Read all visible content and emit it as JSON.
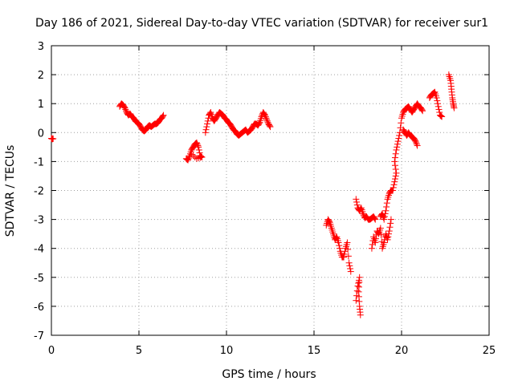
{
  "chart_data": {
    "type": "scatter",
    "title": "Day 186 of 2021, Sidereal Day-to-day VTEC variation (SDTVAR) for receiver sur1",
    "xlabel": "GPS time / hours",
    "ylabel": "SDTVAR / TECUs",
    "xlim": [
      0,
      25
    ],
    "ylim": [
      -7,
      3
    ],
    "xticks": [
      0,
      5,
      10,
      15,
      20,
      25
    ],
    "yticks": [
      -7,
      -6,
      -5,
      -4,
      -3,
      -2,
      -1,
      0,
      1,
      2,
      3
    ],
    "grid": true,
    "marker": "+",
    "color": "#ff0000",
    "series": [
      {
        "name": "sur1",
        "segments": [
          [
            [
              0.0,
              -0.2
            ],
            [
              0.05,
              -0.22
            ],
            [
              0.1,
              -0.21
            ]
          ],
          [
            [
              3.9,
              0.9
            ],
            [
              4.0,
              1.0
            ],
            [
              4.1,
              0.95
            ],
            [
              4.2,
              0.85
            ],
            [
              4.3,
              0.7
            ],
            [
              4.4,
              0.6
            ],
            [
              4.5,
              0.65
            ],
            [
              4.6,
              0.55
            ],
            [
              4.7,
              0.5
            ],
            [
              4.8,
              0.4
            ],
            [
              4.9,
              0.35
            ],
            [
              5.0,
              0.3
            ],
            [
              5.1,
              0.2
            ],
            [
              5.2,
              0.1
            ],
            [
              5.3,
              0.05
            ],
            [
              5.4,
              0.1
            ],
            [
              5.5,
              0.2
            ],
            [
              5.6,
              0.25
            ],
            [
              5.7,
              0.2
            ],
            [
              5.8,
              0.25
            ],
            [
              5.9,
              0.3
            ],
            [
              6.0,
              0.3
            ],
            [
              6.1,
              0.35
            ],
            [
              6.2,
              0.45
            ],
            [
              6.3,
              0.5
            ],
            [
              6.4,
              0.6
            ]
          ],
          [
            [
              7.7,
              -0.9
            ],
            [
              7.8,
              -0.95
            ],
            [
              7.9,
              -0.8
            ],
            [
              8.0,
              -0.6
            ],
            [
              8.1,
              -0.5
            ],
            [
              8.2,
              -0.4
            ],
            [
              8.3,
              -0.35
            ],
            [
              8.4,
              -0.5
            ],
            [
              8.5,
              -0.8
            ],
            [
              8.6,
              -0.85
            ],
            [
              8.3,
              -0.9
            ],
            [
              8.0,
              -0.75
            ]
          ],
          [
            [
              8.8,
              0.0
            ],
            [
              8.9,
              0.3
            ],
            [
              9.0,
              0.6
            ],
            [
              9.1,
              0.7
            ],
            [
              9.2,
              0.5
            ],
            [
              9.3,
              0.4
            ],
            [
              9.4,
              0.5
            ],
            [
              9.5,
              0.6
            ],
            [
              9.6,
              0.7
            ],
            [
              9.7,
              0.65
            ],
            [
              9.8,
              0.6
            ],
            [
              9.9,
              0.5
            ],
            [
              10.0,
              0.45
            ],
            [
              10.1,
              0.35
            ],
            [
              10.2,
              0.3
            ],
            [
              10.3,
              0.2
            ],
            [
              10.4,
              0.1
            ],
            [
              10.5,
              0.05
            ],
            [
              10.6,
              -0.05
            ],
            [
              10.7,
              -0.1
            ],
            [
              10.8,
              -0.05
            ],
            [
              10.9,
              0.0
            ],
            [
              11.0,
              0.05
            ],
            [
              11.1,
              0.1
            ],
            [
              11.2,
              0.0
            ],
            [
              11.3,
              0.05
            ],
            [
              11.4,
              0.1
            ],
            [
              11.5,
              0.2
            ],
            [
              11.6,
              0.3
            ],
            [
              11.7,
              0.3
            ],
            [
              11.8,
              0.25
            ],
            [
              11.9,
              0.35
            ],
            [
              12.0,
              0.55
            ],
            [
              12.1,
              0.7
            ],
            [
              12.2,
              0.6
            ],
            [
              12.3,
              0.45
            ],
            [
              12.4,
              0.3
            ],
            [
              12.5,
              0.2
            ]
          ],
          [
            [
              15.7,
              -3.2
            ],
            [
              15.8,
              -3.0
            ],
            [
              15.9,
              -3.1
            ],
            [
              16.0,
              -3.3
            ],
            [
              16.1,
              -3.5
            ],
            [
              16.2,
              -3.7
            ],
            [
              16.3,
              -3.6
            ],
            [
              16.4,
              -3.8
            ],
            [
              16.5,
              -4.1
            ],
            [
              16.6,
              -4.3
            ],
            [
              16.7,
              -4.3
            ],
            [
              16.8,
              -4.0
            ],
            [
              16.9,
              -3.8
            ],
            [
              17.0,
              -4.5
            ],
            [
              17.1,
              -4.8
            ]
          ],
          [
            [
              17.4,
              -5.8
            ],
            [
              17.5,
              -5.3
            ],
            [
              17.6,
              -5.0
            ],
            [
              17.55,
              -5.5
            ],
            [
              17.6,
              -6.0
            ],
            [
              17.65,
              -6.3
            ]
          ],
          [
            [
              17.4,
              -2.3
            ],
            [
              17.5,
              -2.6
            ],
            [
              17.6,
              -2.7
            ],
            [
              17.7,
              -2.6
            ],
            [
              17.8,
              -2.8
            ],
            [
              17.9,
              -2.95
            ],
            [
              18.0,
              -2.9
            ],
            [
              18.1,
              -3.0
            ],
            [
              18.2,
              -3.0
            ],
            [
              18.3,
              -2.95
            ],
            [
              18.4,
              -2.9
            ],
            [
              18.5,
              -3.0
            ]
          ],
          [
            [
              18.3,
              -4.0
            ],
            [
              18.4,
              -3.6
            ],
            [
              18.5,
              -3.8
            ],
            [
              18.6,
              -3.4
            ],
            [
              18.7,
              -3.5
            ],
            [
              18.8,
              -3.3
            ],
            [
              18.9,
              -4.0
            ],
            [
              19.0,
              -3.8
            ],
            [
              19.1,
              -3.5
            ],
            [
              19.2,
              -3.7
            ],
            [
              19.3,
              -3.4
            ],
            [
              19.4,
              -3.0
            ]
          ],
          [
            [
              18.8,
              -2.9
            ],
            [
              18.9,
              -2.8
            ],
            [
              19.0,
              -3.0
            ],
            [
              19.1,
              -2.7
            ],
            [
              19.2,
              -2.3
            ],
            [
              19.3,
              -2.1
            ],
            [
              19.4,
              -2.0
            ],
            [
              19.5,
              -2.0
            ],
            [
              19.6,
              -1.7
            ],
            [
              19.7,
              -1.4
            ],
            [
              19.6,
              -1.0
            ],
            [
              19.7,
              -0.6
            ],
            [
              19.8,
              -0.3
            ],
            [
              19.9,
              0.0
            ],
            [
              20.0,
              0.5
            ],
            [
              20.1,
              0.7
            ],
            [
              20.2,
              0.8
            ],
            [
              20.3,
              0.85
            ],
            [
              20.4,
              0.9
            ],
            [
              20.5,
              0.8
            ],
            [
              20.6,
              0.7
            ],
            [
              20.7,
              0.8
            ],
            [
              20.8,
              0.9
            ],
            [
              20.9,
              1.0
            ],
            [
              21.0,
              0.9
            ],
            [
              21.1,
              0.85
            ],
            [
              21.2,
              0.75
            ]
          ],
          [
            [
              20.1,
              0.1
            ],
            [
              20.2,
              0.0
            ],
            [
              20.3,
              -0.1
            ],
            [
              20.4,
              0.0
            ],
            [
              20.5,
              -0.1
            ],
            [
              20.6,
              -0.15
            ],
            [
              20.7,
              -0.2
            ],
            [
              20.8,
              -0.3
            ],
            [
              20.9,
              -0.45
            ]
          ],
          [
            [
              21.6,
              1.2
            ],
            [
              21.7,
              1.3
            ],
            [
              21.8,
              1.35
            ],
            [
              21.9,
              1.4
            ],
            [
              22.0,
              1.2
            ],
            [
              22.1,
              0.9
            ],
            [
              22.2,
              0.6
            ],
            [
              22.3,
              0.55
            ]
          ],
          [
            [
              22.7,
              2.0
            ],
            [
              22.8,
              1.8
            ],
            [
              22.85,
              1.5
            ],
            [
              22.9,
              1.2
            ],
            [
              22.95,
              1.0
            ],
            [
              23.0,
              0.85
            ]
          ]
        ]
      }
    ]
  }
}
